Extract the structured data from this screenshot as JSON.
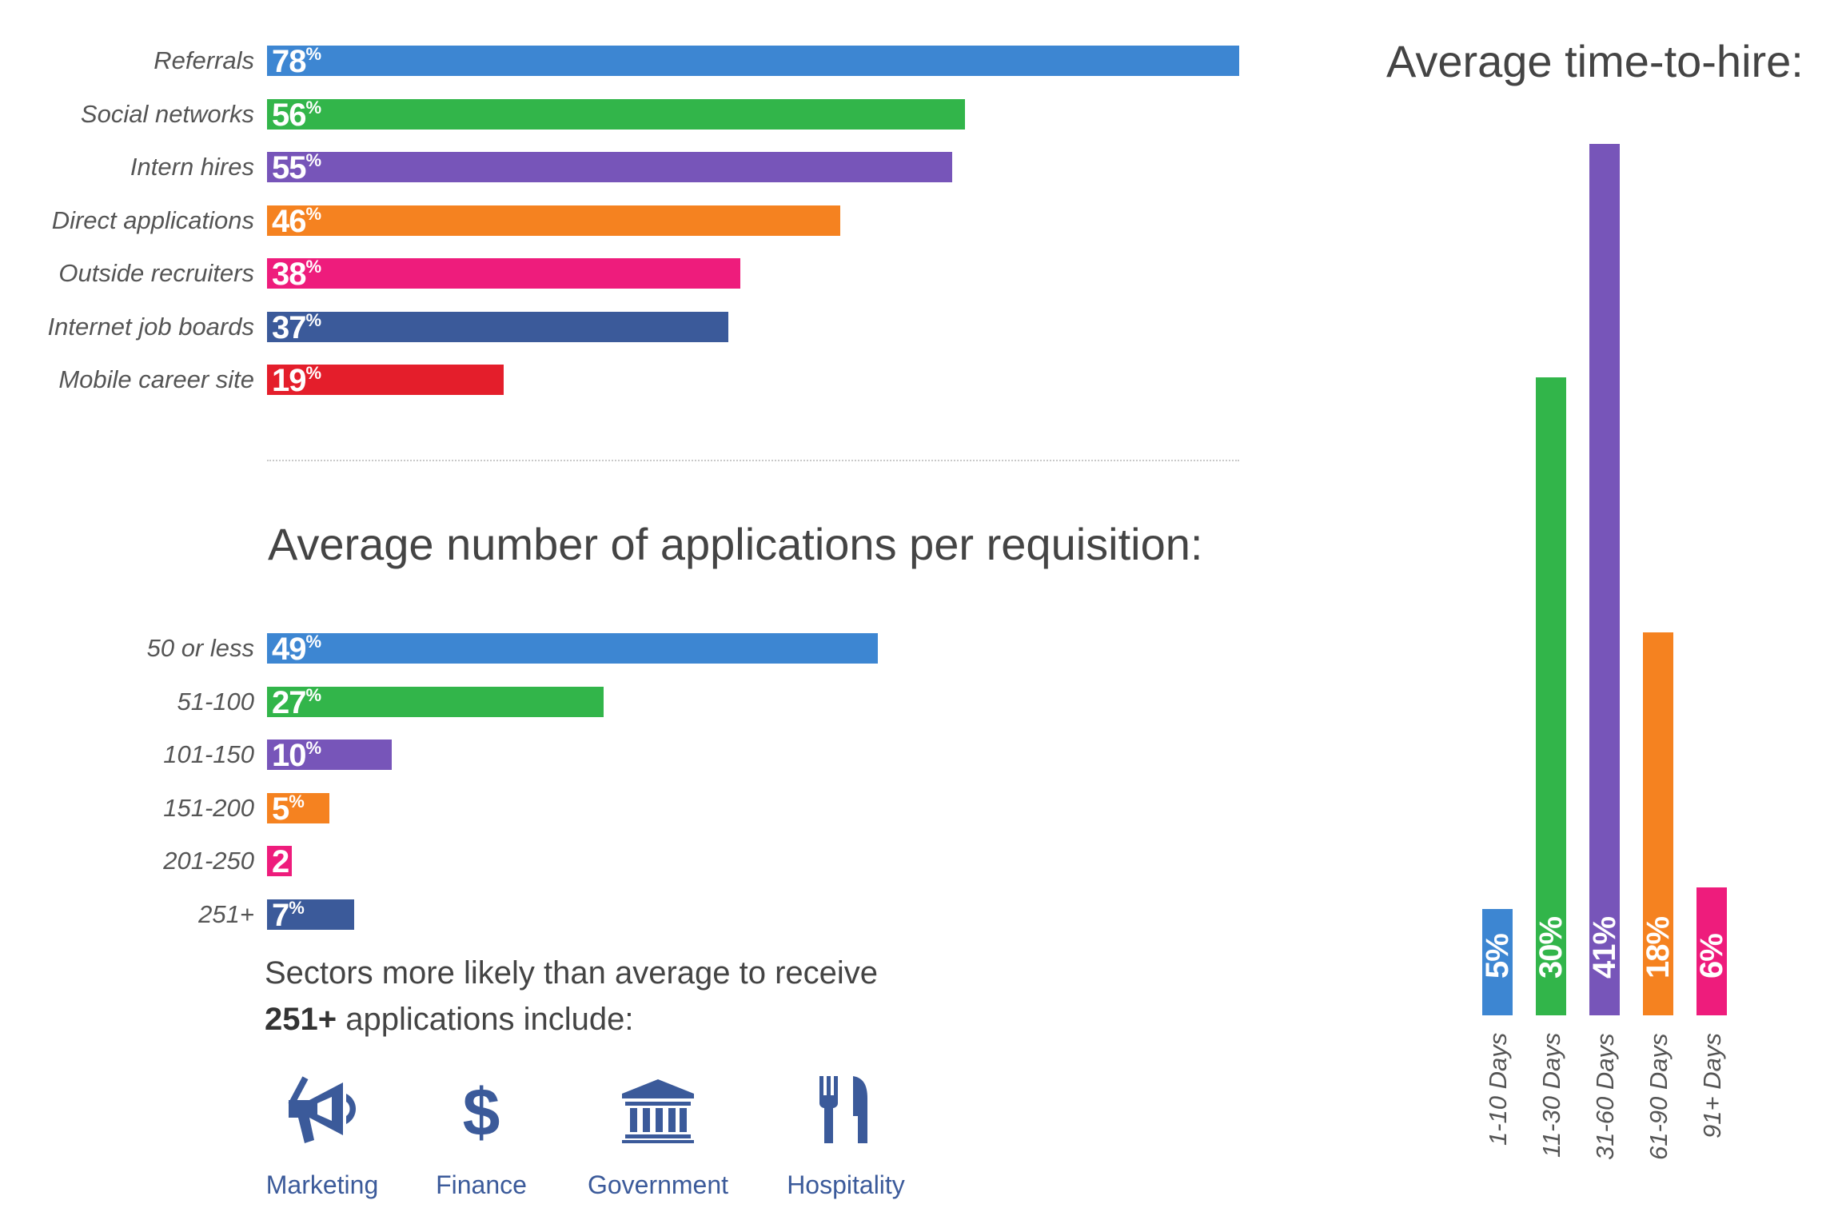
{
  "chart_data": [
    {
      "type": "bar",
      "orientation": "horizontal",
      "title": "",
      "categories": [
        "Referrals",
        "Social networks",
        "Intern hires",
        "Direct applications",
        "Outside recruiters",
        "Internet job boards",
        "Mobile career site"
      ],
      "values": [
        78,
        56,
        55,
        46,
        38,
        37,
        19
      ],
      "value_labels": [
        "78",
        "56",
        "55",
        "46",
        "38",
        "37",
        "19"
      ],
      "unit": "%",
      "colors": [
        "#3d86d2",
        "#32b54a",
        "#7755b9",
        "#f58220",
        "#ee1c7c",
        "#3b5a9a",
        "#e41e2b"
      ],
      "xlim": [
        0,
        78
      ]
    },
    {
      "type": "bar",
      "orientation": "horizontal",
      "title": "Average number of applications per requisition:",
      "categories": [
        "50 or less",
        "51-100",
        "101-150",
        "151-200",
        "201-250",
        "251+"
      ],
      "values": [
        49,
        27,
        10,
        5,
        2,
        7
      ],
      "value_labels": [
        "49",
        "27",
        "10",
        "5",
        "2",
        "7"
      ],
      "value_units": [
        "%",
        "%",
        "%",
        "%",
        "",
        "%"
      ],
      "colors": [
        "#3d86d2",
        "#32b54a",
        "#7755b9",
        "#f58220",
        "#ee1c7c",
        "#3b5a9a"
      ],
      "xlim": [
        0,
        78
      ]
    },
    {
      "type": "bar",
      "orientation": "vertical",
      "title": "Average time-to-hire:",
      "categories": [
        "1-10 Days",
        "11-30 Days",
        "31-60 Days",
        "61-90 Days",
        "91+ Days"
      ],
      "values": [
        5,
        30,
        41,
        18,
        6
      ],
      "value_labels": [
        "5",
        "30",
        "41",
        "18",
        "6"
      ],
      "unit": "%",
      "colors": [
        "#3d86d2",
        "#32b54a",
        "#7755b9",
        "#f58220",
        "#ee1c7c"
      ],
      "ylim": [
        0,
        41
      ]
    }
  ],
  "sectors": {
    "text_line1": "Sectors more likely than average to receive",
    "text_bold": "251+",
    "text_line2_rest": " applications include:",
    "items": [
      {
        "label": "Marketing",
        "icon": "megaphone-icon"
      },
      {
        "label": "Finance",
        "icon": "dollar-icon"
      },
      {
        "label": "Government",
        "icon": "government-building-icon"
      },
      {
        "label": "Hospitality",
        "icon": "fork-knife-icon"
      }
    ],
    "icon_color": "#3b5a9a"
  }
}
